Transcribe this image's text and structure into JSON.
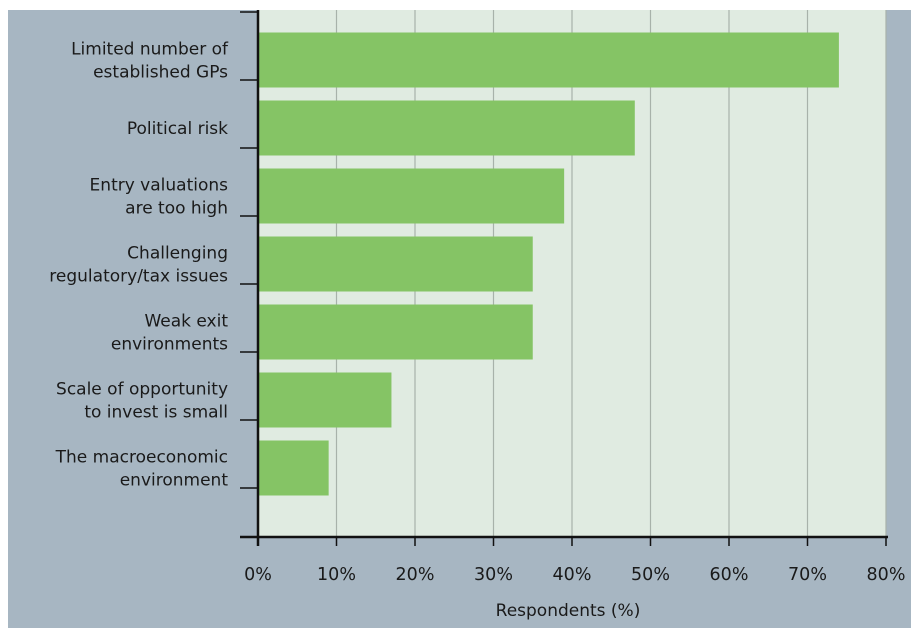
{
  "chart_data": {
    "type": "bar",
    "orientation": "horizontal",
    "categories": [
      [
        "Limited number of",
        "established GPs"
      ],
      [
        "Political risk"
      ],
      [
        "Entry valuations",
        "are too high"
      ],
      [
        "Challenging",
        "regulatory/tax issues"
      ],
      [
        "Weak exit",
        "environments"
      ],
      [
        "Scale of opportunity",
        "to invest is small"
      ],
      [
        "The macroeconomic",
        "environment"
      ]
    ],
    "values": [
      74,
      48,
      39,
      35,
      35,
      17,
      9
    ],
    "xlabel": "Respondents (%)",
    "xlim": [
      0,
      80
    ],
    "xticks": [
      0,
      10,
      20,
      30,
      40,
      50,
      60,
      70,
      80
    ],
    "tick_suffix": "%",
    "grid": "vertical",
    "colors": {
      "frame": "#a7b6c2",
      "plot_background": "#e0ebe1",
      "bar": "#85c465",
      "gridline": "#a8b2aa",
      "axis": "#111111"
    }
  }
}
